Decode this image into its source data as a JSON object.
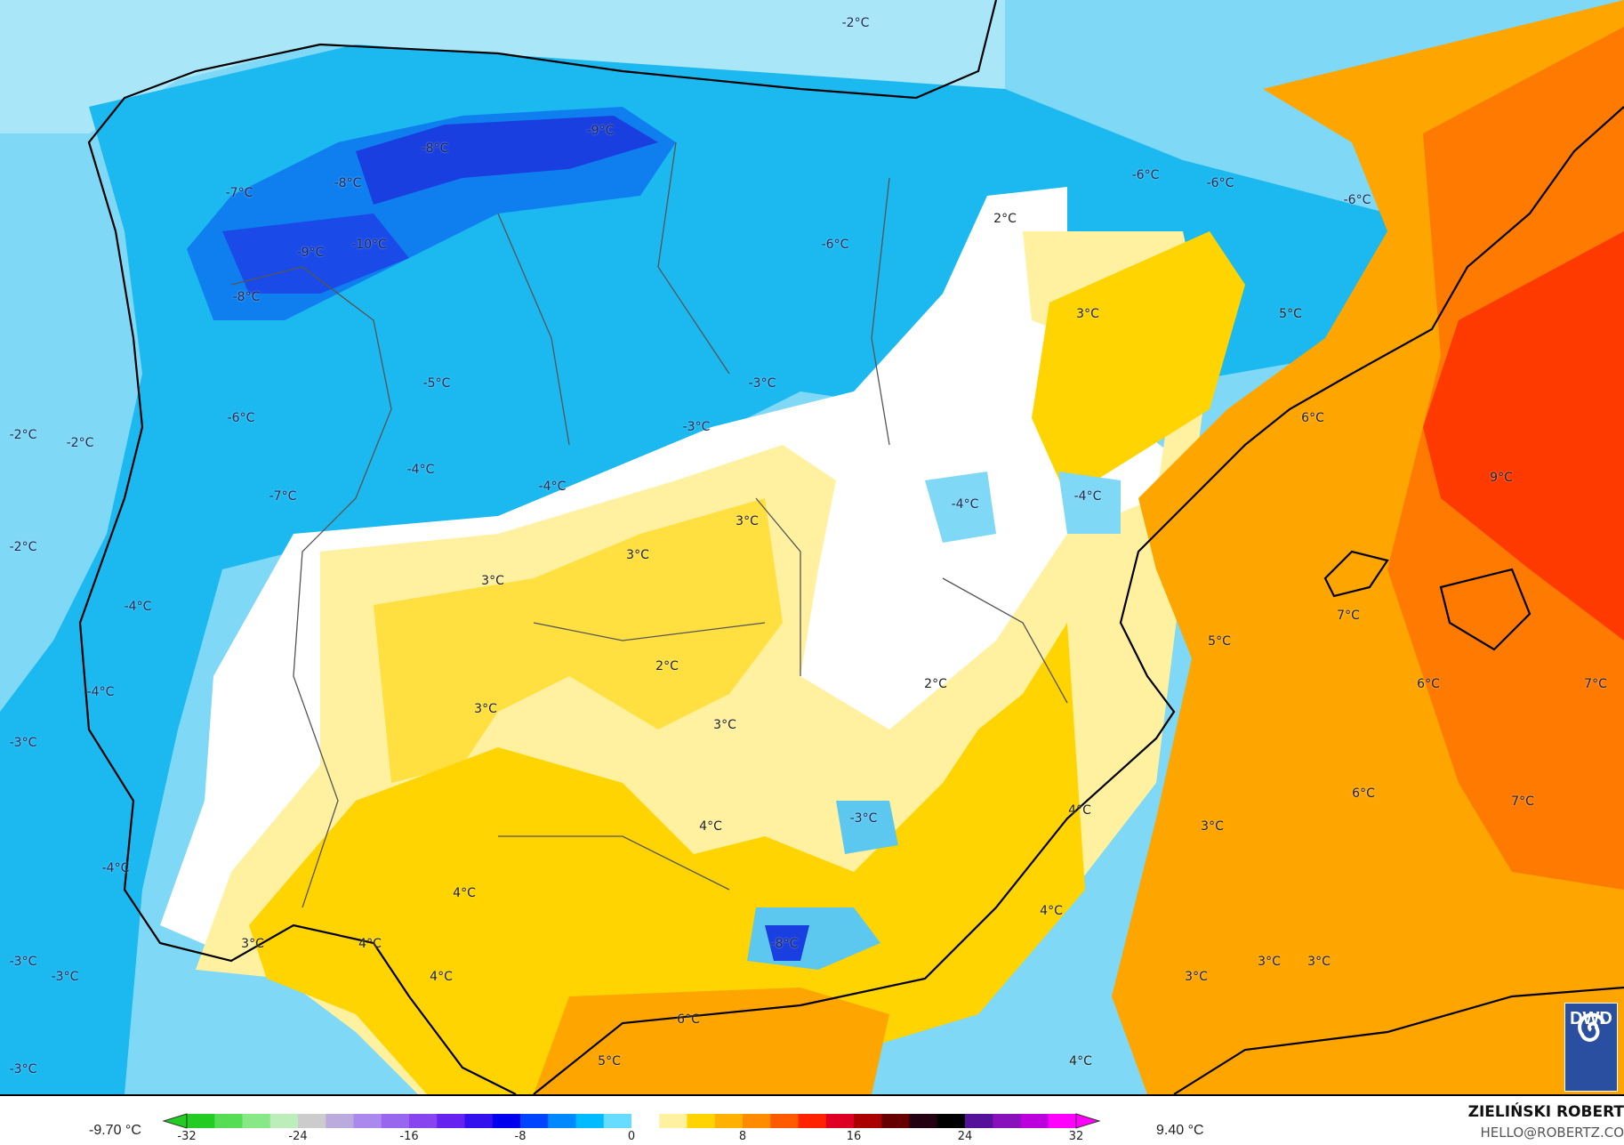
{
  "map": {
    "labels": [
      "-2°C",
      "-9°C",
      "-8°C",
      "-7°C",
      "-8°C",
      "-9°C",
      "-10°C",
      "-8°C",
      "-6°C",
      "-6°C",
      "-6°C",
      "-6°C",
      "2°C",
      "3°C",
      "5°C",
      "-5°C",
      "-3°C",
      "-3°C",
      "-2°C",
      "-2°C",
      "-6°C",
      "-4°C",
      "-4°C",
      "-7°C",
      "6°C",
      "9°C",
      "-4°C",
      "-4°C",
      "3°C",
      "3°C",
      "3°C",
      "-2°C",
      "-4°C",
      "7°C",
      "5°C",
      "2°C",
      "2°C",
      "6°C",
      "7°C",
      "-4°C",
      "3°C",
      "3°C",
      "-3°C",
      "4°C",
      "-3°C",
      "4°C",
      "3°C",
      "6°C",
      "7°C",
      "-4°C",
      "4°C",
      "4°C",
      "-8°C",
      "3°C",
      "4°C",
      "-3°C",
      "-3°C",
      "4°C",
      "3°C",
      "3°C",
      "3°C",
      "6°C",
      "5°C",
      "4°C",
      "-3°C"
    ],
    "colors": {
      "cold_dark": "#1a3fe0",
      "cold": "#1cb8f0",
      "cool": "#7fd8f5",
      "neutral": "#ffffff",
      "warm_light": "#fff1a0",
      "warm": "#ffd400",
      "warmer": "#ffa500",
      "hot": "#ff6a00",
      "hotter": "#ff3a00"
    }
  },
  "logo": {
    "text": "DWD"
  },
  "legend": {
    "min_value": "-9.70 °C",
    "max_value": "9.40 °C",
    "ticks": [
      "-32",
      "-24",
      "-16",
      "-8",
      "0",
      "8",
      "16",
      "24",
      "32"
    ],
    "scale_colors": [
      "#22cc22",
      "#55dd55",
      "#88e888",
      "#bbeebb",
      "#cccccc",
      "#bbaadd",
      "#aa88ee",
      "#9966ee",
      "#8844ee",
      "#6622ee",
      "#3311ee",
      "#0000ee",
      "#0044ff",
      "#0088ff",
      "#00bbff",
      "#66ddff",
      "#ffffff",
      "#fff1a0",
      "#ffd400",
      "#ffb000",
      "#ff8c00",
      "#ff5a00",
      "#ff2200",
      "#dd0022",
      "#aa0000",
      "#660000",
      "#220011",
      "#000000",
      "#551199",
      "#8811bb",
      "#bb00dd",
      "#ff00ff"
    ]
  },
  "credits": {
    "author": "ZIELIŃSKI ROBERT",
    "email": "HELLO@ROBERTZ.CO"
  }
}
